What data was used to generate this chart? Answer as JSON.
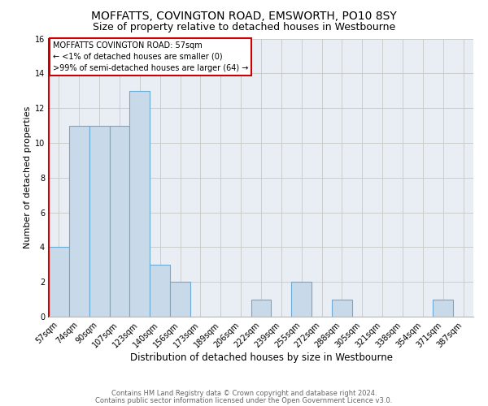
{
  "title": "MOFFATTS, COVINGTON ROAD, EMSWORTH, PO10 8SY",
  "subtitle": "Size of property relative to detached houses in Westbourne",
  "xlabel": "Distribution of detached houses by size in Westbourne",
  "ylabel": "Number of detached properties",
  "bin_labels": [
    "57sqm",
    "74sqm",
    "90sqm",
    "107sqm",
    "123sqm",
    "140sqm",
    "156sqm",
    "173sqm",
    "189sqm",
    "206sqm",
    "222sqm",
    "239sqm",
    "255sqm",
    "272sqm",
    "288sqm",
    "305sqm",
    "321sqm",
    "338sqm",
    "354sqm",
    "371sqm",
    "387sqm"
  ],
  "bar_values": [
    4,
    11,
    11,
    11,
    13,
    3,
    2,
    0,
    0,
    0,
    1,
    0,
    2,
    0,
    1,
    0,
    0,
    0,
    0,
    1,
    0
  ],
  "bar_color": "#c8d9ea",
  "bar_edge_color": "#6aaad4",
  "annotation_title": "MOFFATTS COVINGTON ROAD: 57sqm",
  "annotation_line1": "← <1% of detached houses are smaller (0)",
  "annotation_line2": ">99% of semi-detached houses are larger (64) →",
  "annotation_box_color": "#ffffff",
  "annotation_box_edge": "#cc0000",
  "red_spine_color": "#cc0000",
  "ylim": [
    0,
    16
  ],
  "yticks": [
    0,
    2,
    4,
    6,
    8,
    10,
    12,
    14,
    16
  ],
  "grid_color": "#cccccc",
  "bg_color": "#e8eef4",
  "footer1": "Contains HM Land Registry data © Crown copyright and database right 2024.",
  "footer2": "Contains public sector information licensed under the Open Government Licence v3.0.",
  "title_fontsize": 10,
  "subtitle_fontsize": 9,
  "xlabel_fontsize": 8.5,
  "ylabel_fontsize": 8,
  "tick_fontsize": 7,
  "ann_fontsize": 7,
  "footer_fontsize": 6
}
